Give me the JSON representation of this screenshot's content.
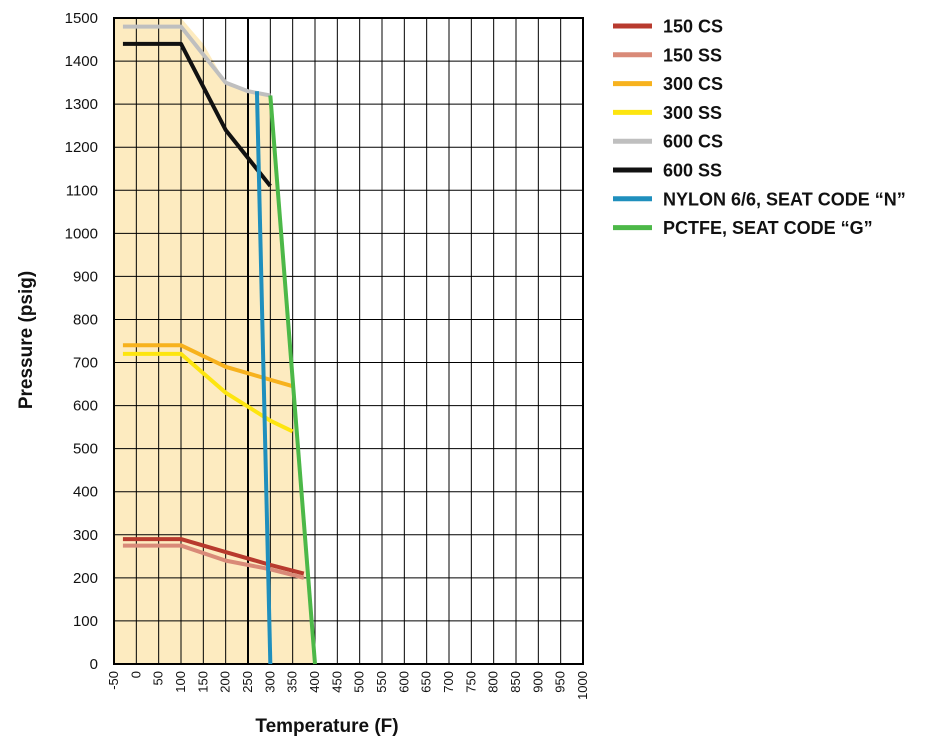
{
  "chart_data": {
    "type": "line",
    "title": "",
    "xlabel": "Temperature (F)",
    "ylabel": "Pressure (psig)",
    "xlim": [
      -50,
      1000
    ],
    "ylim": [
      0,
      1500
    ],
    "x_ticks": [
      -50,
      0,
      50,
      100,
      150,
      200,
      250,
      300,
      350,
      400,
      450,
      500,
      550,
      600,
      650,
      700,
      750,
      800,
      850,
      900,
      950,
      1000
    ],
    "y_ticks": [
      0,
      100,
      200,
      300,
      400,
      500,
      600,
      700,
      800,
      900,
      1000,
      1100,
      1200,
      1300,
      1400,
      1500
    ],
    "grid": true,
    "legend_position": "right",
    "shaded_region": {
      "color": "#fdebc0",
      "points": [
        [
          -50,
          0
        ],
        [
          -50,
          1500
        ],
        [
          100,
          1500
        ],
        [
          150,
          1440
        ],
        [
          200,
          1350
        ],
        [
          250,
          1330
        ],
        [
          300,
          1320
        ],
        [
          400,
          0
        ]
      ]
    },
    "reference_line_x": 250,
    "series": [
      {
        "name": "150 CS",
        "color": "#b83a2e",
        "x": [
          -30,
          100,
          200,
          300,
          375
        ],
        "y": [
          290,
          290,
          260,
          230,
          210
        ]
      },
      {
        "name": "150 SS",
        "color": "#d98a78",
        "x": [
          -30,
          100,
          200,
          300,
          375
        ],
        "y": [
          275,
          275,
          240,
          220,
          200
        ]
      },
      {
        "name": "300 CS",
        "color": "#f7b21e",
        "x": [
          -30,
          100,
          200,
          300,
          350
        ],
        "y": [
          740,
          740,
          690,
          660,
          645
        ]
      },
      {
        "name": "300 SS",
        "color": "#fde50f",
        "x": [
          -30,
          100,
          200,
          300,
          350
        ],
        "y": [
          720,
          720,
          630,
          565,
          540
        ]
      },
      {
        "name": "600 CS",
        "color": "#bfbfbf",
        "x": [
          -30,
          100,
          200,
          250,
          300
        ],
        "y": [
          1480,
          1480,
          1350,
          1330,
          1320
        ]
      },
      {
        "name": "600 SS",
        "color": "#111111",
        "x": [
          -30,
          100,
          200,
          300
        ],
        "y": [
          1440,
          1440,
          1240,
          1110
        ]
      },
      {
        "name": "NYLON 6/6, SEAT CODE “N”",
        "color": "#1f8fbd",
        "x": [
          270,
          300
        ],
        "y": [
          1330,
          0
        ]
      },
      {
        "name": "PCTFE, SEAT CODE “G”",
        "color": "#4cb848",
        "x": [
          300,
          400
        ],
        "y": [
          1320,
          0
        ]
      }
    ]
  }
}
